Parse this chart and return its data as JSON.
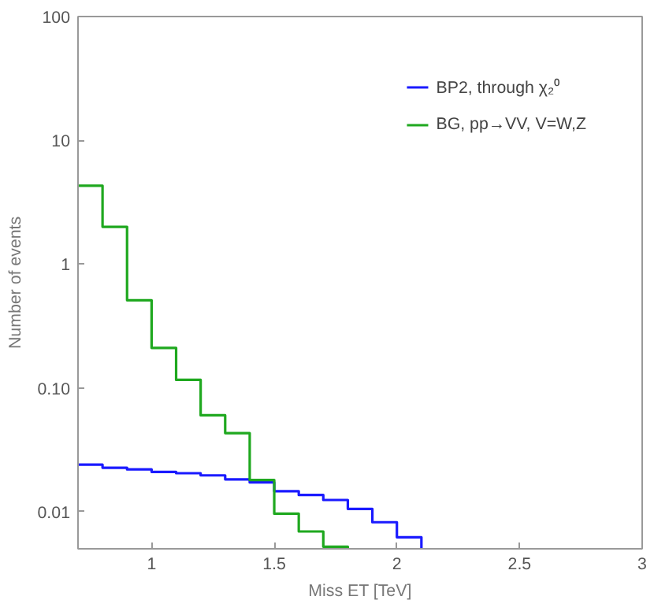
{
  "chart_data": {
    "type": "step",
    "xlabel": "Miss ET [TeV]",
    "ylabel": "Number of events",
    "xlim": [
      0.7,
      3
    ],
    "ylim": [
      0.005,
      100
    ],
    "log": "y",
    "xticks": [
      1,
      1.5,
      2,
      2.5,
      3
    ],
    "yticks": [
      {
        "value": 0.01,
        "label": "0.01"
      },
      {
        "value": 0.1,
        "label": "0.10"
      },
      1,
      10,
      100
    ],
    "grid": false,
    "legend": "top right",
    "series": [
      {
        "name": "BP2, through χ₂⁰",
        "color": "#1a1aff",
        "x": [
          0.7,
          0.8,
          0.9,
          1.0,
          1.1,
          1.2,
          1.3,
          1.4,
          1.5,
          1.6,
          1.7,
          1.8,
          1.9,
          2.0,
          2.1
        ],
        "values": [
          0.0239,
          0.0226,
          0.0219,
          0.0209,
          0.0204,
          0.0196,
          0.0182,
          0.0172,
          0.0146,
          0.0136,
          0.0124,
          0.0105,
          0.0082,
          0.0062,
          0.005
        ]
      },
      {
        "name": "BG, pp→VV, V=W,Z",
        "color": "#1fa81f",
        "x": [
          0.7,
          0.8,
          0.9,
          1.0,
          1.1,
          1.2,
          1.3,
          1.4,
          1.5,
          1.6,
          1.7,
          1.8
        ],
        "values": [
          4.3,
          2.0,
          0.51,
          0.21,
          0.116,
          0.06,
          0.043,
          0.018,
          0.0096,
          0.0069,
          0.0052,
          0.005
        ]
      }
    ]
  }
}
